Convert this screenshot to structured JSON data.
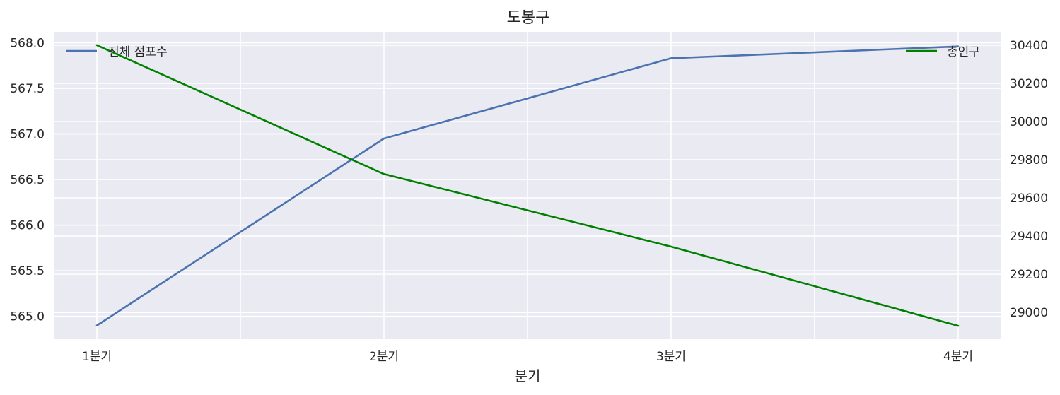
{
  "chart_data": {
    "type": "line",
    "title": "도봉구",
    "xlabel": "분기",
    "categories": [
      "1분기",
      "2분기",
      "3분기",
      "4분기"
    ],
    "series": [
      {
        "name": "전체 점포수",
        "axis": "left",
        "color": "#4c72b0",
        "values": [
          564.9,
          566.95,
          567.83,
          567.96
        ]
      },
      {
        "name": "총인구",
        "axis": "right",
        "color": "#008000",
        "values": [
          30400,
          29725,
          29345,
          28930
        ]
      }
    ],
    "y_left": {
      "lim": [
        564.75,
        568.12
      ],
      "ticks": [
        "565.0",
        "565.5",
        "566.0",
        "566.5",
        "567.0",
        "567.5",
        "568.0"
      ]
    },
    "y_right": {
      "lim": [
        28860,
        30470
      ],
      "ticks": [
        "29000",
        "29200",
        "29400",
        "29600",
        "29800",
        "30000",
        "30200",
        "30400"
      ]
    },
    "grid": true,
    "background": "#eaeaf2",
    "legend_left_position": "upper-left",
    "legend_right_position": "upper-right"
  }
}
